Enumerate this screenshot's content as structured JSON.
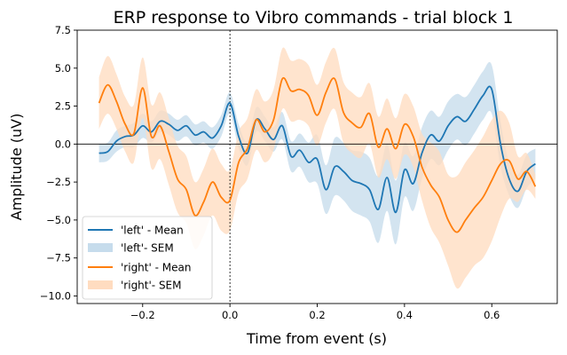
{
  "chart_data": {
    "type": "line",
    "title": "ERP response to Vibro commands - trial block 1",
    "xlabel": "Time from event (s)",
    "ylabel": "Amplitude (uV)",
    "xlim": [
      -0.35,
      0.75
    ],
    "ylim": [
      -10.5,
      7.5
    ],
    "xticks": [
      -0.2,
      0.0,
      0.2,
      0.4,
      0.6
    ],
    "xtick_labels": [
      "−0.2",
      "0.0",
      "0.2",
      "0.4",
      "0.6"
    ],
    "yticks": [
      -10.0,
      -7.5,
      -5.0,
      -2.5,
      0.0,
      2.5,
      5.0,
      7.5
    ],
    "ytick_labels": [
      "−10.0",
      "−7.5",
      "−5.0",
      "−2.5",
      "0.0",
      "2.5",
      "5.0",
      "7.5"
    ],
    "grid": false,
    "legend_position": "lower-left",
    "event_line_x": 0.0,
    "zero_line_y": 0.0,
    "series": [
      {
        "name": "left",
        "legend_mean": "'left' - Mean",
        "legend_sem": "'left'- SEM",
        "color": "#1f77b4",
        "band_color": "#c6dcec",
        "x": [
          -0.3,
          -0.28,
          -0.26,
          -0.24,
          -0.22,
          -0.2,
          -0.18,
          -0.16,
          -0.14,
          -0.12,
          -0.1,
          -0.08,
          -0.06,
          -0.04,
          -0.02,
          0.0,
          0.02,
          0.04,
          0.06,
          0.08,
          0.1,
          0.12,
          0.14,
          0.16,
          0.18,
          0.2,
          0.22,
          0.24,
          0.26,
          0.28,
          0.3,
          0.32,
          0.34,
          0.36,
          0.38,
          0.4,
          0.42,
          0.44,
          0.46,
          0.48,
          0.5,
          0.52,
          0.54,
          0.56,
          0.58,
          0.6,
          0.62,
          0.64,
          0.66,
          0.68,
          0.7
        ],
        "mean": [
          -0.6,
          -0.5,
          0.2,
          0.5,
          0.6,
          1.2,
          0.8,
          1.5,
          1.3,
          0.9,
          1.2,
          0.6,
          0.8,
          0.4,
          1.2,
          2.7,
          0.5,
          -0.6,
          1.6,
          1.0,
          0.3,
          1.2,
          -0.8,
          -0.4,
          -1.2,
          -1.0,
          -3.0,
          -1.5,
          -1.8,
          -2.4,
          -2.6,
          -3.0,
          -4.3,
          -2.2,
          -4.5,
          -1.7,
          -2.6,
          -0.6,
          0.6,
          0.2,
          1.2,
          1.8,
          1.5,
          2.3,
          3.2,
          3.6,
          0.0,
          -2.3,
          -3.1,
          -1.8,
          -1.3
        ],
        "sem_low": [
          -1.2,
          -1.1,
          -0.5,
          -0.2,
          -0.2,
          0.4,
          0.1,
          0.8,
          0.6,
          0.2,
          0.5,
          -0.1,
          0.1,
          -0.3,
          0.5,
          2.0,
          -0.3,
          -1.4,
          0.8,
          0.2,
          -0.5,
          0.3,
          -1.8,
          -1.5,
          -2.5,
          -2.6,
          -4.6,
          -3.4,
          -3.7,
          -4.4,
          -4.7,
          -5.1,
          -6.5,
          -4.4,
          -6.6,
          -3.5,
          -4.4,
          -2.3,
          -1.0,
          -1.4,
          -0.4,
          0.3,
          -0.1,
          0.7,
          1.6,
          2.0,
          -1.5,
          -3.4,
          -4.2,
          -2.9,
          -2.3
        ],
        "sem_high": [
          0.0,
          0.1,
          0.9,
          1.2,
          1.4,
          2.0,
          1.5,
          2.2,
          2.0,
          1.6,
          1.9,
          1.3,
          1.5,
          1.1,
          1.9,
          3.4,
          1.3,
          0.2,
          2.4,
          1.8,
          1.1,
          2.1,
          0.2,
          0.7,
          0.1,
          0.6,
          -1.4,
          0.4,
          0.1,
          -0.4,
          -0.5,
          -0.9,
          -2.1,
          0.0,
          -2.4,
          0.1,
          -0.8,
          1.1,
          2.2,
          1.8,
          2.8,
          3.3,
          3.1,
          3.9,
          4.8,
          5.2,
          1.5,
          -1.2,
          -2.0,
          -0.7,
          -0.3
        ]
      },
      {
        "name": "right",
        "legend_mean": "'right' - Mean",
        "legend_sem": "'right'- SEM",
        "color": "#ff7f0e",
        "band_color": "#ffdcc0",
        "x": [
          -0.3,
          -0.28,
          -0.26,
          -0.24,
          -0.22,
          -0.2,
          -0.18,
          -0.16,
          -0.14,
          -0.12,
          -0.1,
          -0.08,
          -0.06,
          -0.04,
          -0.02,
          0.0,
          0.02,
          0.04,
          0.06,
          0.08,
          0.1,
          0.12,
          0.14,
          0.16,
          0.18,
          0.2,
          0.22,
          0.24,
          0.26,
          0.28,
          0.3,
          0.32,
          0.34,
          0.36,
          0.38,
          0.4,
          0.42,
          0.44,
          0.46,
          0.48,
          0.5,
          0.52,
          0.54,
          0.56,
          0.58,
          0.6,
          0.62,
          0.64,
          0.66,
          0.68,
          0.7
        ],
        "mean": [
          2.7,
          3.9,
          2.8,
          1.3,
          0.7,
          3.7,
          0.5,
          1.2,
          -0.5,
          -2.3,
          -3.0,
          -4.7,
          -3.8,
          -2.5,
          -3.5,
          -3.7,
          -1.2,
          -0.3,
          1.6,
          0.8,
          1.6,
          4.3,
          3.5,
          3.6,
          3.2,
          1.9,
          3.4,
          4.3,
          2.1,
          1.4,
          1.1,
          2.0,
          -0.2,
          1.0,
          -0.3,
          1.3,
          0.5,
          -1.5,
          -2.7,
          -3.5,
          -5.0,
          -5.8,
          -5.0,
          -4.2,
          -3.5,
          -2.4,
          -1.3,
          -1.1,
          -2.3,
          -1.8,
          -2.8
        ],
        "sem_low": [
          1.0,
          2.0,
          1.0,
          -0.5,
          -1.2,
          1.7,
          -1.6,
          -1.0,
          -2.7,
          -4.5,
          -5.2,
          -6.9,
          -6.0,
          -4.7,
          -5.7,
          -5.7,
          -3.2,
          -2.3,
          -0.4,
          -1.2,
          -0.4,
          2.3,
          1.5,
          1.6,
          1.2,
          -0.1,
          1.4,
          2.3,
          0.1,
          -0.6,
          -0.9,
          0.0,
          -2.2,
          -1.0,
          -2.3,
          -0.7,
          -1.5,
          -3.7,
          -5.5,
          -6.5,
          -8.0,
          -9.5,
          -8.8,
          -8.0,
          -7.5,
          -6.4,
          -4.8,
          -3.6,
          -3.8,
          -3.0,
          -3.6
        ],
        "sem_high": [
          4.4,
          5.8,
          4.6,
          3.1,
          2.6,
          5.7,
          2.6,
          3.4,
          1.7,
          -0.1,
          -0.8,
          -2.5,
          -1.6,
          -0.3,
          -1.3,
          -1.7,
          0.8,
          1.7,
          3.6,
          2.8,
          3.6,
          6.3,
          5.5,
          5.6,
          5.2,
          3.9,
          5.4,
          6.3,
          4.1,
          3.4,
          3.1,
          4.0,
          1.8,
          3.0,
          1.7,
          3.3,
          2.5,
          0.7,
          0.1,
          -0.5,
          -2.0,
          -2.1,
          -1.2,
          -0.4,
          0.5,
          1.6,
          2.2,
          1.4,
          -0.8,
          -0.6,
          -2.0
        ]
      }
    ]
  }
}
